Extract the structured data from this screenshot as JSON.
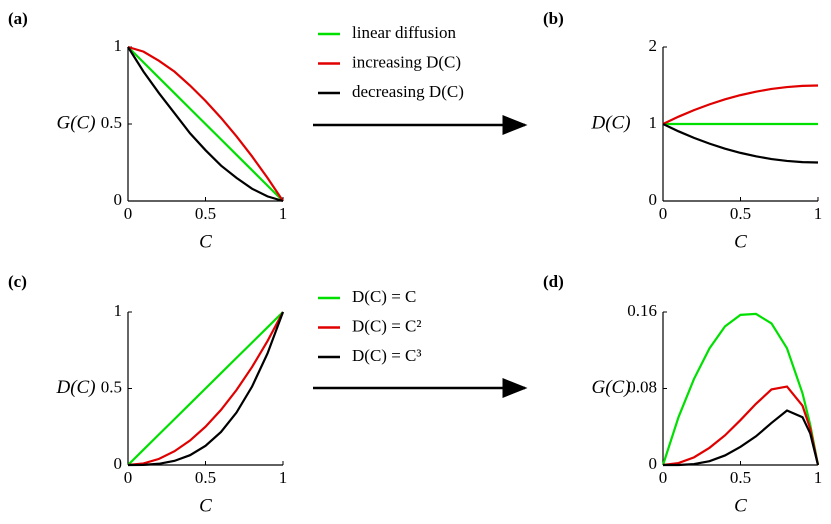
{
  "chart_data": [
    {
      "type": "line",
      "panel_label": "(a)",
      "ylabel": "G(C)",
      "xlabel": "C",
      "xlim": [
        0,
        1
      ],
      "ylim": [
        0,
        1
      ],
      "xticks": [
        0,
        0.5,
        1
      ],
      "yticks": [
        0,
        0.5,
        1
      ],
      "x": [
        0,
        0.1,
        0.2,
        0.3,
        0.4,
        0.5,
        0.6,
        0.7,
        0.8,
        0.9,
        1
      ],
      "series": [
        {
          "name": "linear diffusion",
          "color": "#00e000",
          "values": [
            1,
            0.9,
            0.8,
            0.7,
            0.6,
            0.5,
            0.4,
            0.3,
            0.2,
            0.1,
            0
          ]
        },
        {
          "name": "increasing D(C)",
          "color": "#e00000",
          "values": [
            1,
            0.97,
            0.91,
            0.84,
            0.75,
            0.65,
            0.54,
            0.42,
            0.29,
            0.15,
            0
          ]
        },
        {
          "name": "decreasing D(C)",
          "color": "#000000",
          "values": [
            1,
            0.84,
            0.7,
            0.57,
            0.44,
            0.33,
            0.23,
            0.15,
            0.08,
            0.03,
            0
          ]
        }
      ]
    },
    {
      "type": "line",
      "panel_label": "(b)",
      "ylabel": "D(C)",
      "xlabel": "C",
      "xlim": [
        0,
        1
      ],
      "ylim": [
        0,
        2
      ],
      "xticks": [
        0,
        0.5,
        1
      ],
      "yticks": [
        0,
        1,
        2
      ],
      "x": [
        0,
        0.1,
        0.2,
        0.3,
        0.4,
        0.5,
        0.6,
        0.7,
        0.8,
        0.9,
        1
      ],
      "series": [
        {
          "color": "#00e000",
          "values": [
            1,
            1,
            1,
            1,
            1,
            1,
            1,
            1,
            1,
            1,
            1
          ]
        },
        {
          "color": "#e00000",
          "values": [
            1,
            1.095,
            1.18,
            1.255,
            1.32,
            1.375,
            1.42,
            1.455,
            1.48,
            1.495,
            1.5
          ]
        },
        {
          "color": "#000000",
          "values": [
            1,
            0.905,
            0.82,
            0.745,
            0.68,
            0.625,
            0.58,
            0.545,
            0.52,
            0.505,
            0.5
          ]
        }
      ]
    },
    {
      "type": "line",
      "panel_label": "(c)",
      "ylabel": "D(C)",
      "xlabel": "C",
      "xlim": [
        0,
        1
      ],
      "ylim": [
        0,
        1
      ],
      "xticks": [
        0,
        0.5,
        1
      ],
      "yticks": [
        0,
        0.5,
        1
      ],
      "x": [
        0,
        0.1,
        0.2,
        0.3,
        0.4,
        0.5,
        0.6,
        0.7,
        0.8,
        0.9,
        1
      ],
      "series": [
        {
          "name": "D(C) = C",
          "color": "#00e000",
          "values": [
            0,
            0.1,
            0.2,
            0.3,
            0.4,
            0.5,
            0.6,
            0.7,
            0.8,
            0.9,
            1
          ]
        },
        {
          "name": "D(C) = C²",
          "color": "#e00000",
          "values": [
            0,
            0.01,
            0.04,
            0.09,
            0.16,
            0.25,
            0.36,
            0.49,
            0.64,
            0.81,
            1
          ]
        },
        {
          "name": "D(C) = C³",
          "color": "#000000",
          "values": [
            0,
            0.001,
            0.008,
            0.027,
            0.064,
            0.125,
            0.216,
            0.343,
            0.512,
            0.729,
            1
          ]
        }
      ]
    },
    {
      "type": "line",
      "panel_label": "(d)",
      "ylabel": "G(C)",
      "xlabel": "C",
      "xlim": [
        0,
        1
      ],
      "ylim": [
        0,
        0.16
      ],
      "xticks": [
        0,
        0.5,
        1
      ],
      "yticks": [
        0,
        0.08,
        0.16
      ],
      "x": [
        0,
        0.1,
        0.2,
        0.3,
        0.4,
        0.5,
        0.6,
        0.7,
        0.8,
        0.9,
        0.95,
        1
      ],
      "series": [
        {
          "color": "#00e000",
          "values": [
            0,
            0.05,
            0.09,
            0.122,
            0.145,
            0.157,
            0.158,
            0.148,
            0.122,
            0.075,
            0.042,
            0
          ]
        },
        {
          "color": "#e00000",
          "values": [
            0,
            0.002,
            0.008,
            0.018,
            0.031,
            0.047,
            0.064,
            0.079,
            0.082,
            0.062,
            0.038,
            0
          ]
        },
        {
          "color": "#000000",
          "values": [
            0,
            0,
            0.001,
            0.004,
            0.01,
            0.019,
            0.03,
            0.044,
            0.057,
            0.05,
            0.033,
            0
          ]
        }
      ]
    }
  ]
}
